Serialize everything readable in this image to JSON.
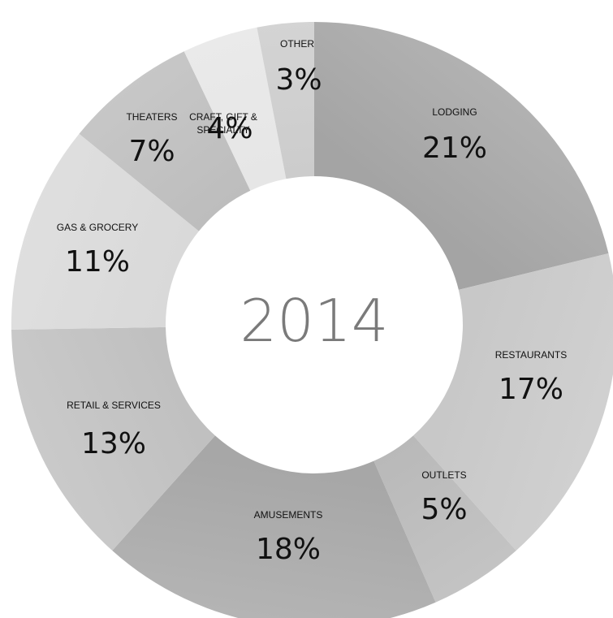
{
  "chart_data": {
    "type": "pie",
    "center_label": "2014",
    "slices": [
      {
        "label": "LODGING",
        "value": 21,
        "value_label": "21%",
        "color": "#a4a4a4"
      },
      {
        "label": "RESTAURANTS",
        "value": 17,
        "value_label": "17%",
        "color": "#c8c8c8"
      },
      {
        "label": "OUTLETS",
        "value": 5,
        "value_label": "5%",
        "color": "#b9b9b9"
      },
      {
        "label": "AMUSEMENTS",
        "value": 18,
        "value_label": "18%",
        "color": "#a7a7a7"
      },
      {
        "label": "RETAIL & SERVICES",
        "value": 13,
        "value_label": "13%",
        "color": "#c0c0c0"
      },
      {
        "label": "GAS & GROCERY",
        "value": 11,
        "value_label": "11%",
        "color": "#d9d9d9"
      },
      {
        "label": "THEATERS",
        "value": 7,
        "value_label": "7%",
        "color": "#bdbdbd"
      },
      {
        "label": "CRAFT, GIFT & SPECIALTY",
        "value": 4,
        "value_label": "4%",
        "color": "#e6e6e6"
      },
      {
        "label": "OTHER",
        "value": 3,
        "value_label": "3%",
        "color": "#cccccc"
      }
    ]
  }
}
